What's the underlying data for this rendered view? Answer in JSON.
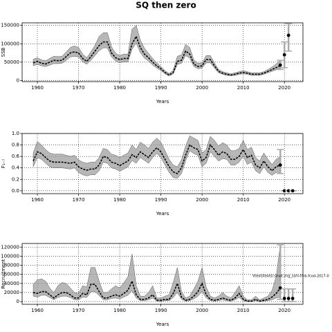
{
  "title": "SQ then zero",
  "chart_data": [
    {
      "type": "line",
      "ylabel": "SSB",
      "xlabel": "Years",
      "color": "#000000",
      "band_color": "#999999",
      "grid": true,
      "xlim": [
        1956.3,
        2024.5
      ],
      "xticks": [
        1960,
        1970,
        1980,
        1990,
        2000,
        2010,
        2020
      ],
      "ylim": [
        -3000,
        157000
      ],
      "yticks": [
        0,
        50000,
        100000,
        150000
      ],
      "x": [
        1959,
        1960,
        1961,
        1962,
        1963,
        1964,
        1965,
        1966,
        1967,
        1968,
        1969,
        1970,
        1971,
        1972,
        1973,
        1974,
        1975,
        1976,
        1977,
        1978,
        1979,
        1980,
        1981,
        1982,
        1983,
        1984,
        1985,
        1986,
        1987,
        1988,
        1989,
        1990,
        1991,
        1992,
        1993,
        1994,
        1995,
        1996,
        1997,
        1998,
        1999,
        2000,
        2001,
        2002,
        2003,
        2004,
        2005,
        2006,
        2007,
        2008,
        2009,
        2010,
        2011,
        2012,
        2013,
        2014,
        2015,
        2016,
        2017,
        2018,
        2019
      ],
      "values": [
        48000,
        52000,
        47000,
        45000,
        50000,
        55000,
        54000,
        55000,
        65000,
        75000,
        78000,
        75000,
        60000,
        52000,
        65000,
        80000,
        95000,
        105000,
        105000,
        75000,
        62000,
        57000,
        60000,
        60000,
        100000,
        120000,
        90000,
        72000,
        62000,
        50000,
        40000,
        32000,
        22000,
        15000,
        22000,
        52000,
        55000,
        80000,
        72000,
        45000,
        38000,
        40000,
        57000,
        57000,
        40000,
        25000,
        20000,
        17000,
        15000,
        17000,
        20000,
        22000,
        20000,
        17000,
        17000,
        17000,
        20000,
        25000,
        30000,
        35000,
        40000
      ],
      "lower": [
        40000,
        44000,
        40000,
        38000,
        42000,
        46000,
        46000,
        47000,
        55000,
        64000,
        66000,
        64000,
        51000,
        44000,
        55000,
        68000,
        81000,
        89000,
        89000,
        64000,
        53000,
        48000,
        51000,
        51000,
        85000,
        102000,
        76000,
        61000,
        53000,
        42000,
        34000,
        27000,
        18000,
        12000,
        18000,
        44000,
        47000,
        68000,
        61000,
        38000,
        32000,
        34000,
        48000,
        48000,
        34000,
        21000,
        17000,
        14000,
        13000,
        14000,
        17000,
        18000,
        17000,
        14000,
        14000,
        14000,
        17000,
        21000,
        25000,
        29000,
        33000
      ],
      "upper": [
        58000,
        62000,
        56000,
        54000,
        60000,
        66000,
        65000,
        66000,
        78000,
        90000,
        94000,
        90000,
        72000,
        62000,
        78000,
        96000,
        120000,
        130000,
        130000,
        92000,
        74000,
        68000,
        72000,
        72000,
        140000,
        150000,
        110000,
        88000,
        74000,
        60000,
        48000,
        38000,
        27000,
        19000,
        28000,
        66000,
        70000,
        98000,
        90000,
        56000,
        47000,
        48000,
        68000,
        68000,
        48000,
        30000,
        24000,
        21000,
        18000,
        21000,
        24000,
        27000,
        24000,
        21000,
        21000,
        21000,
        24000,
        30000,
        37000,
        45000,
        55000
      ],
      "projection": {
        "x": [
          2019,
          2020,
          2021
        ],
        "values": [
          42000,
          70000,
          123000
        ],
        "lower": [
          30000,
          35000,
          80000
        ],
        "upper": [
          55000,
          105000,
          155000
        ]
      }
    },
    {
      "type": "line",
      "ylabel": "F₁₋₇",
      "xlabel": "Years",
      "color": "#000000",
      "band_color": "#999999",
      "grid": true,
      "xlim": [
        1956.3,
        2024.5
      ],
      "xticks": [
        1960,
        1970,
        1980,
        1990,
        2000,
        2010,
        2020
      ],
      "ylim": [
        -0.05,
        1.0
      ],
      "yticks": [
        {
          "value": 0,
          "label": "0.0"
        },
        0.2,
        0.4,
        0.6,
        0.8,
        {
          "value": 1,
          "label": "1.0"
        }
      ],
      "x": [
        1959,
        1960,
        1961,
        1962,
        1963,
        1964,
        1965,
        1966,
        1967,
        1968,
        1969,
        1970,
        1971,
        1972,
        1973,
        1974,
        1975,
        1976,
        1977,
        1978,
        1979,
        1980,
        1981,
        1982,
        1983,
        1984,
        1985,
        1986,
        1987,
        1988,
        1989,
        1990,
        1991,
        1992,
        1993,
        1994,
        1995,
        1996,
        1997,
        1998,
        1999,
        2000,
        2001,
        2002,
        2003,
        2004,
        2005,
        2006,
        2007,
        2008,
        2009,
        2010,
        2011,
        2012,
        2013,
        2014,
        2015,
        2016,
        2017,
        2018,
        2019
      ],
      "values": [
        0.52,
        0.68,
        0.65,
        0.58,
        0.52,
        0.5,
        0.5,
        0.5,
        0.49,
        0.48,
        0.5,
        0.42,
        0.38,
        0.36,
        0.38,
        0.38,
        0.45,
        0.6,
        0.58,
        0.5,
        0.48,
        0.44,
        0.48,
        0.52,
        0.63,
        0.58,
        0.68,
        0.63,
        0.58,
        0.68,
        0.75,
        0.68,
        0.55,
        0.42,
        0.33,
        0.3,
        0.4,
        0.62,
        0.8,
        0.75,
        0.72,
        0.52,
        0.58,
        0.8,
        0.72,
        0.62,
        0.68,
        0.65,
        0.55,
        0.55,
        0.6,
        0.72,
        0.58,
        0.62,
        0.45,
        0.4,
        0.52,
        0.42,
        0.35,
        0.42,
        0.45
      ],
      "lower": [
        0.42,
        0.58,
        0.55,
        0.48,
        0.42,
        0.4,
        0.4,
        0.4,
        0.39,
        0.38,
        0.4,
        0.32,
        0.28,
        0.26,
        0.28,
        0.28,
        0.35,
        0.5,
        0.48,
        0.4,
        0.38,
        0.34,
        0.38,
        0.42,
        0.53,
        0.48,
        0.58,
        0.53,
        0.48,
        0.58,
        0.65,
        0.58,
        0.45,
        0.32,
        0.23,
        0.22,
        0.3,
        0.52,
        0.7,
        0.65,
        0.62,
        0.42,
        0.48,
        0.68,
        0.6,
        0.52,
        0.56,
        0.55,
        0.45,
        0.45,
        0.5,
        0.6,
        0.46,
        0.5,
        0.35,
        0.3,
        0.42,
        0.32,
        0.27,
        0.32,
        0.32
      ],
      "upper": [
        0.66,
        0.86,
        0.8,
        0.72,
        0.66,
        0.64,
        0.64,
        0.64,
        0.62,
        0.6,
        0.62,
        0.54,
        0.5,
        0.48,
        0.5,
        0.5,
        0.58,
        0.74,
        0.72,
        0.64,
        0.62,
        0.58,
        0.62,
        0.66,
        0.8,
        0.72,
        0.85,
        0.8,
        0.74,
        0.85,
        0.92,
        0.85,
        0.7,
        0.55,
        0.45,
        0.42,
        0.54,
        0.78,
        0.96,
        0.92,
        0.88,
        0.66,
        0.72,
        0.95,
        0.88,
        0.78,
        0.84,
        0.8,
        0.7,
        0.7,
        0.74,
        0.88,
        0.72,
        0.76,
        0.58,
        0.52,
        0.66,
        0.55,
        0.46,
        0.55,
        0.6
      ],
      "projection": {
        "x": [
          2019,
          2020,
          2021,
          2022
        ],
        "values": [
          0.45,
          0,
          0,
          0
        ],
        "lower": [
          0.3,
          0,
          0,
          0
        ],
        "upper": [
          0.72,
          0,
          0,
          0
        ]
      }
    },
    {
      "type": "line",
      "ylabel": "Recruitment",
      "xlabel": "Years",
      "color": "#000000",
      "band_color": "#999999",
      "grid": true,
      "annotation": "Vtextstextsl.smat.zng_ssm-fmb-fcod-2017-0",
      "xlim": [
        1956.3,
        2024.5
      ],
      "xticks": [
        1960,
        1970,
        1980,
        1990,
        2000,
        2010,
        2020
      ],
      "ylim": [
        -6000,
        128000
      ],
      "yticks": [
        0,
        20000,
        40000,
        60000,
        80000,
        100000,
        120000
      ],
      "x": [
        1959,
        1960,
        1961,
        1962,
        1963,
        1964,
        1965,
        1966,
        1967,
        1968,
        1969,
        1970,
        1971,
        1972,
        1973,
        1974,
        1975,
        1976,
        1977,
        1978,
        1979,
        1980,
        1981,
        1982,
        1983,
        1984,
        1985,
        1986,
        1987,
        1988,
        1989,
        1990,
        1991,
        1992,
        1993,
        1994,
        1995,
        1996,
        1997,
        1998,
        1999,
        2000,
        2001,
        2002,
        2003,
        2004,
        2005,
        2006,
        2007,
        2008,
        2009,
        2010,
        2011,
        2012,
        2013,
        2014,
        2015,
        2016,
        2017,
        2018,
        2019
      ],
      "values": [
        20000,
        18000,
        22000,
        22000,
        15000,
        8000,
        15000,
        20000,
        20000,
        15000,
        8000,
        8000,
        18000,
        15000,
        38000,
        38000,
        22000,
        8000,
        8000,
        12000,
        15000,
        12000,
        18000,
        25000,
        45000,
        15000,
        5000,
        5000,
        8000,
        15000,
        3000,
        3000,
        5000,
        5000,
        18000,
        40000,
        10000,
        3000,
        5000,
        12000,
        22000,
        40000,
        15000,
        5000,
        3000,
        5000,
        8000,
        5000,
        3000,
        8000,
        18000,
        5000,
        1000,
        1000,
        5000,
        1000,
        3000,
        5000,
        10000,
        18000,
        30000
      ],
      "lower": [
        12000,
        10000,
        14000,
        14000,
        9000,
        4000,
        9000,
        12000,
        12000,
        9000,
        4000,
        4000,
        10000,
        9000,
        22000,
        22000,
        13000,
        4000,
        4000,
        7000,
        8000,
        6000,
        10000,
        14000,
        24000,
        8000,
        2000,
        2000,
        4000,
        8000,
        1000,
        1000,
        2000,
        2000,
        9000,
        20000,
        5000,
        1000,
        2000,
        6000,
        12000,
        22000,
        8000,
        2000,
        1000,
        2000,
        4000,
        2000,
        1000,
        4000,
        9000,
        2000,
        0,
        0,
        2000,
        0,
        1000,
        2000,
        4000,
        8000,
        10000
      ],
      "upper": [
        38000,
        48000,
        50000,
        45000,
        30000,
        20000,
        35000,
        42000,
        40000,
        30000,
        20000,
        18000,
        35000,
        32000,
        75000,
        75000,
        45000,
        20000,
        20000,
        28000,
        35000,
        30000,
        42000,
        55000,
        105000,
        35000,
        12000,
        12000,
        20000,
        35000,
        8000,
        8000,
        12000,
        15000,
        42000,
        75000,
        22000,
        8000,
        12000,
        28000,
        45000,
        75000,
        32000,
        12000,
        8000,
        12000,
        20000,
        12000,
        8000,
        20000,
        35000,
        12000,
        4000,
        4000,
        12000,
        4000,
        8000,
        12000,
        25000,
        55000,
        125000
      ],
      "projection": {
        "x": [
          2019,
          2020,
          2021,
          2022
        ],
        "values": [
          30000,
          7000,
          7000,
          7000
        ],
        "lower": [
          5000,
          0,
          0,
          0
        ],
        "upper": [
          125000,
          28000,
          28000,
          28000
        ]
      }
    }
  ]
}
